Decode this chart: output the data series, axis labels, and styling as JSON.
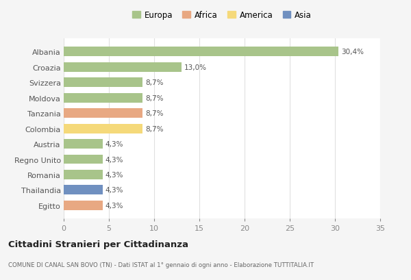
{
  "categories": [
    "Albania",
    "Croazia",
    "Svizzera",
    "Moldova",
    "Tanzania",
    "Colombia",
    "Austria",
    "Regno Unito",
    "Romania",
    "Thailandia",
    "Egitto"
  ],
  "values": [
    30.4,
    13.0,
    8.7,
    8.7,
    8.7,
    8.7,
    4.3,
    4.3,
    4.3,
    4.3,
    4.3
  ],
  "labels": [
    "30,4%",
    "13,0%",
    "8,7%",
    "8,7%",
    "8,7%",
    "8,7%",
    "4,3%",
    "4,3%",
    "4,3%",
    "4,3%",
    "4,3%"
  ],
  "colors": [
    "#a8c48a",
    "#a8c48a",
    "#a8c48a",
    "#a8c48a",
    "#e8a882",
    "#f5d97a",
    "#a8c48a",
    "#a8c48a",
    "#a8c48a",
    "#7090c0",
    "#e8a882"
  ],
  "continent_labels": [
    "Europa",
    "Africa",
    "America",
    "Asia"
  ],
  "continent_colors": [
    "#a8c48a",
    "#e8a882",
    "#f5d97a",
    "#7090c0"
  ],
  "title": "Cittadini Stranieri per Cittadinanza",
  "subtitle": "COMUNE DI CANAL SAN BOVO (TN) - Dati ISTAT al 1° gennaio di ogni anno - Elaborazione TUTTITALIA.IT",
  "xlim": [
    0,
    35
  ],
  "xticks": [
    0,
    5,
    10,
    15,
    20,
    25,
    30,
    35
  ],
  "background_color": "#f5f5f5",
  "bar_area_color": "#ffffff",
  "grid_color": "#e0e0e0"
}
